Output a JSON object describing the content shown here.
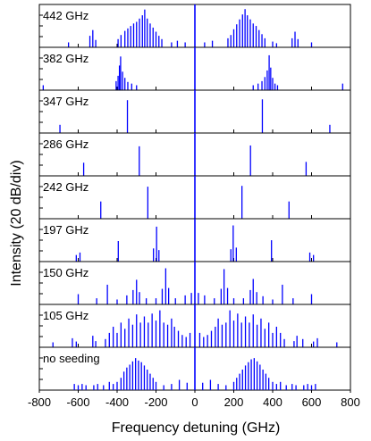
{
  "chart_data": {
    "type": "stacked-spectra",
    "xlabel": "Frequency detuning (GHz)",
    "ylabel": "Intensity (20 dB/div)",
    "xlim": [
      -800,
      800
    ],
    "x_ticks": [
      -800,
      -600,
      -400,
      -200,
      0,
      200,
      400,
      600,
      800
    ],
    "x_tick_labels": [
      "-800",
      "-600",
      "-400",
      "-200",
      "0",
      "200",
      "400",
      "600",
      "800"
    ],
    "line_color": "#0000ff",
    "grid": false,
    "panels": [
      {
        "label": "442 GHz",
        "spacing_ghz": 442,
        "lines": [
          {
            "x": 0,
            "h": 1.0
          },
          {
            "x": -650,
            "h": 0.12
          },
          {
            "x": -540,
            "h": 0.28
          },
          {
            "x": -525,
            "h": 0.42
          },
          {
            "x": -510,
            "h": 0.18
          },
          {
            "x": -395,
            "h": 0.2
          },
          {
            "x": -380,
            "h": 0.3
          },
          {
            "x": -360,
            "h": 0.4
          },
          {
            "x": -345,
            "h": 0.46
          },
          {
            "x": -330,
            "h": 0.52
          },
          {
            "x": -315,
            "h": 0.58
          },
          {
            "x": -300,
            "h": 0.62
          },
          {
            "x": -285,
            "h": 0.7
          },
          {
            "x": -270,
            "h": 0.78
          },
          {
            "x": -258,
            "h": 0.92
          },
          {
            "x": -245,
            "h": 0.7
          },
          {
            "x": -230,
            "h": 0.58
          },
          {
            "x": -215,
            "h": 0.48
          },
          {
            "x": -200,
            "h": 0.38
          },
          {
            "x": -185,
            "h": 0.28
          },
          {
            "x": -170,
            "h": 0.2
          },
          {
            "x": -120,
            "h": 0.12
          },
          {
            "x": -90,
            "h": 0.16
          },
          {
            "x": -50,
            "h": 0.12
          },
          {
            "x": 50,
            "h": 0.12
          },
          {
            "x": 90,
            "h": 0.16
          },
          {
            "x": 170,
            "h": 0.22
          },
          {
            "x": 185,
            "h": 0.3
          },
          {
            "x": 200,
            "h": 0.44
          },
          {
            "x": 215,
            "h": 0.56
          },
          {
            "x": 230,
            "h": 0.68
          },
          {
            "x": 245,
            "h": 0.8
          },
          {
            "x": 258,
            "h": 0.93
          },
          {
            "x": 270,
            "h": 0.78
          },
          {
            "x": 285,
            "h": 0.68
          },
          {
            "x": 300,
            "h": 0.58
          },
          {
            "x": 315,
            "h": 0.52
          },
          {
            "x": 330,
            "h": 0.42
          },
          {
            "x": 345,
            "h": 0.32
          },
          {
            "x": 360,
            "h": 0.22
          },
          {
            "x": 400,
            "h": 0.14
          },
          {
            "x": 420,
            "h": 0.1
          },
          {
            "x": 500,
            "h": 0.22
          },
          {
            "x": 515,
            "h": 0.38
          },
          {
            "x": 530,
            "h": 0.2
          },
          {
            "x": 600,
            "h": 0.12
          }
        ]
      },
      {
        "label": "382 GHz",
        "spacing_ghz": 382,
        "lines": [
          {
            "x": 0,
            "h": 1.0
          },
          {
            "x": -780,
            "h": 0.12
          },
          {
            "x": -405,
            "h": 0.22
          },
          {
            "x": -395,
            "h": 0.35
          },
          {
            "x": -388,
            "h": 0.6
          },
          {
            "x": -382,
            "h": 0.82
          },
          {
            "x": -372,
            "h": 0.45
          },
          {
            "x": -360,
            "h": 0.3
          },
          {
            "x": -345,
            "h": 0.2
          },
          {
            "x": -325,
            "h": 0.16
          },
          {
            "x": -300,
            "h": 0.12
          },
          {
            "x": 300,
            "h": 0.12
          },
          {
            "x": 325,
            "h": 0.16
          },
          {
            "x": 345,
            "h": 0.22
          },
          {
            "x": 360,
            "h": 0.32
          },
          {
            "x": 372,
            "h": 0.48
          },
          {
            "x": 382,
            "h": 0.85
          },
          {
            "x": 390,
            "h": 0.55
          },
          {
            "x": 400,
            "h": 0.3
          },
          {
            "x": 412,
            "h": 0.16
          },
          {
            "x": 425,
            "h": 0.12
          },
          {
            "x": 760,
            "h": 0.16
          }
        ]
      },
      {
        "label": "347 GHz",
        "spacing_ghz": 347,
        "lines": [
          {
            "x": 0,
            "h": 1.0
          },
          {
            "x": -694,
            "h": 0.2
          },
          {
            "x": -347,
            "h": 0.8
          },
          {
            "x": 347,
            "h": 0.82
          },
          {
            "x": 694,
            "h": 0.2
          }
        ]
      },
      {
        "label": "286 GHz",
        "spacing_ghz": 286,
        "lines": [
          {
            "x": 0,
            "h": 1.0
          },
          {
            "x": -572,
            "h": 0.32
          },
          {
            "x": -286,
            "h": 0.72
          },
          {
            "x": 286,
            "h": 0.74
          },
          {
            "x": 572,
            "h": 0.34
          }
        ]
      },
      {
        "label": "242 GHz",
        "spacing_ghz": 242,
        "lines": [
          {
            "x": 0,
            "h": 1.0
          },
          {
            "x": -484,
            "h": 0.42
          },
          {
            "x": -242,
            "h": 0.78
          },
          {
            "x": 242,
            "h": 0.8
          },
          {
            "x": 484,
            "h": 0.42
          }
        ]
      },
      {
        "label": "197 GHz",
        "spacing_ghz": 197,
        "lines": [
          {
            "x": 0,
            "h": 1.0
          },
          {
            "x": -610,
            "h": 0.16
          },
          {
            "x": -591,
            "h": 0.22
          },
          {
            "x": -394,
            "h": 0.5
          },
          {
            "x": -213,
            "h": 0.32
          },
          {
            "x": -197,
            "h": 0.85
          },
          {
            "x": -185,
            "h": 0.28
          },
          {
            "x": 185,
            "h": 0.3
          },
          {
            "x": 197,
            "h": 0.88
          },
          {
            "x": 213,
            "h": 0.34
          },
          {
            "x": 394,
            "h": 0.52
          },
          {
            "x": 591,
            "h": 0.22
          },
          {
            "x": 610,
            "h": 0.16
          }
        ]
      },
      {
        "label": "150 GHz",
        "spacing_ghz": 150,
        "lines": [
          {
            "x": 0,
            "h": 1.0
          },
          {
            "x": -600,
            "h": 0.25
          },
          {
            "x": -505,
            "h": 0.15
          },
          {
            "x": -450,
            "h": 0.48
          },
          {
            "x": -400,
            "h": 0.12
          },
          {
            "x": -350,
            "h": 0.22
          },
          {
            "x": -318,
            "h": 0.35
          },
          {
            "x": -300,
            "h": 0.6
          },
          {
            "x": -285,
            "h": 0.3
          },
          {
            "x": -250,
            "h": 0.15
          },
          {
            "x": -200,
            "h": 0.15
          },
          {
            "x": -168,
            "h": 0.38
          },
          {
            "x": -150,
            "h": 0.88
          },
          {
            "x": -135,
            "h": 0.4
          },
          {
            "x": -100,
            "h": 0.15
          },
          {
            "x": -50,
            "h": 0.22
          },
          {
            "x": -18,
            "h": 0.28
          },
          {
            "x": 18,
            "h": 0.28
          },
          {
            "x": 50,
            "h": 0.22
          },
          {
            "x": 100,
            "h": 0.15
          },
          {
            "x": 135,
            "h": 0.38
          },
          {
            "x": 150,
            "h": 0.86
          },
          {
            "x": 168,
            "h": 0.4
          },
          {
            "x": 200,
            "h": 0.15
          },
          {
            "x": 250,
            "h": 0.15
          },
          {
            "x": 285,
            "h": 0.35
          },
          {
            "x": 300,
            "h": 0.62
          },
          {
            "x": 318,
            "h": 0.3
          },
          {
            "x": 350,
            "h": 0.2
          },
          {
            "x": 400,
            "h": 0.12
          },
          {
            "x": 450,
            "h": 0.48
          },
          {
            "x": 505,
            "h": 0.15
          },
          {
            "x": 600,
            "h": 0.25
          }
        ]
      },
      {
        "label": "105 GHz",
        "spacing_ghz": 105,
        "lines": [
          {
            "x": 0,
            "h": 1.0
          },
          {
            "x": -730,
            "h": 0.12
          },
          {
            "x": -630,
            "h": 0.22
          },
          {
            "x": -610,
            "h": 0.14
          },
          {
            "x": -525,
            "h": 0.28
          },
          {
            "x": -510,
            "h": 0.15
          },
          {
            "x": -460,
            "h": 0.2
          },
          {
            "x": -440,
            "h": 0.35
          },
          {
            "x": -420,
            "h": 0.5
          },
          {
            "x": -400,
            "h": 0.35
          },
          {
            "x": -380,
            "h": 0.6
          },
          {
            "x": -360,
            "h": 0.45
          },
          {
            "x": -340,
            "h": 0.7
          },
          {
            "x": -320,
            "h": 0.55
          },
          {
            "x": -300,
            "h": 0.8
          },
          {
            "x": -280,
            "h": 0.6
          },
          {
            "x": -260,
            "h": 0.75
          },
          {
            "x": -240,
            "h": 0.6
          },
          {
            "x": -220,
            "h": 0.82
          },
          {
            "x": -200,
            "h": 0.65
          },
          {
            "x": -180,
            "h": 0.9
          },
          {
            "x": -160,
            "h": 0.6
          },
          {
            "x": -140,
            "h": 0.55
          },
          {
            "x": -120,
            "h": 0.7
          },
          {
            "x": -105,
            "h": 0.5
          },
          {
            "x": -85,
            "h": 0.4
          },
          {
            "x": -65,
            "h": 0.3
          },
          {
            "x": -45,
            "h": 0.25
          },
          {
            "x": -25,
            "h": 0.35
          },
          {
            "x": 25,
            "h": 0.35
          },
          {
            "x": 45,
            "h": 0.25
          },
          {
            "x": 65,
            "h": 0.3
          },
          {
            "x": 85,
            "h": 0.4
          },
          {
            "x": 105,
            "h": 0.5
          },
          {
            "x": 120,
            "h": 0.7
          },
          {
            "x": 140,
            "h": 0.55
          },
          {
            "x": 160,
            "h": 0.6
          },
          {
            "x": 180,
            "h": 0.9
          },
          {
            "x": 200,
            "h": 0.65
          },
          {
            "x": 220,
            "h": 0.82
          },
          {
            "x": 240,
            "h": 0.6
          },
          {
            "x": 260,
            "h": 0.75
          },
          {
            "x": 280,
            "h": 0.6
          },
          {
            "x": 300,
            "h": 0.8
          },
          {
            "x": 320,
            "h": 0.55
          },
          {
            "x": 340,
            "h": 0.7
          },
          {
            "x": 360,
            "h": 0.45
          },
          {
            "x": 380,
            "h": 0.6
          },
          {
            "x": 400,
            "h": 0.35
          },
          {
            "x": 420,
            "h": 0.5
          },
          {
            "x": 440,
            "h": 0.35
          },
          {
            "x": 460,
            "h": 0.2
          },
          {
            "x": 510,
            "h": 0.15
          },
          {
            "x": 525,
            "h": 0.28
          },
          {
            "x": 555,
            "h": 0.2
          },
          {
            "x": 610,
            "h": 0.14
          },
          {
            "x": 630,
            "h": 0.22
          },
          {
            "x": 730,
            "h": 0.12
          }
        ]
      },
      {
        "label": "no seeding",
        "spacing_ghz": null,
        "lines": [
          {
            "x": 0,
            "h": 1.0
          },
          {
            "x": -620,
            "h": 0.15
          },
          {
            "x": -600,
            "h": 0.12
          },
          {
            "x": -580,
            "h": 0.15
          },
          {
            "x": -560,
            "h": 0.12
          },
          {
            "x": -520,
            "h": 0.12
          },
          {
            "x": -500,
            "h": 0.15
          },
          {
            "x": -470,
            "h": 0.12
          },
          {
            "x": -440,
            "h": 0.2
          },
          {
            "x": -420,
            "h": 0.15
          },
          {
            "x": -400,
            "h": 0.2
          },
          {
            "x": -380,
            "h": 0.3
          },
          {
            "x": -365,
            "h": 0.45
          },
          {
            "x": -350,
            "h": 0.55
          },
          {
            "x": -335,
            "h": 0.62
          },
          {
            "x": -320,
            "h": 0.7
          },
          {
            "x": -305,
            "h": 0.78
          },
          {
            "x": -290,
            "h": 0.72
          },
          {
            "x": -275,
            "h": 0.68
          },
          {
            "x": -260,
            "h": 0.6
          },
          {
            "x": -245,
            "h": 0.5
          },
          {
            "x": -230,
            "h": 0.4
          },
          {
            "x": -215,
            "h": 0.3
          },
          {
            "x": -200,
            "h": 0.2
          },
          {
            "x": -160,
            "h": 0.12
          },
          {
            "x": -120,
            "h": 0.15
          },
          {
            "x": -80,
            "h": 0.25
          },
          {
            "x": -40,
            "h": 0.18
          },
          {
            "x": 40,
            "h": 0.18
          },
          {
            "x": 80,
            "h": 0.25
          },
          {
            "x": 120,
            "h": 0.15
          },
          {
            "x": 160,
            "h": 0.12
          },
          {
            "x": 200,
            "h": 0.2
          },
          {
            "x": 215,
            "h": 0.3
          },
          {
            "x": 230,
            "h": 0.4
          },
          {
            "x": 245,
            "h": 0.5
          },
          {
            "x": 260,
            "h": 0.6
          },
          {
            "x": 275,
            "h": 0.68
          },
          {
            "x": 290,
            "h": 0.75
          },
          {
            "x": 305,
            "h": 0.78
          },
          {
            "x": 320,
            "h": 0.7
          },
          {
            "x": 335,
            "h": 0.62
          },
          {
            "x": 350,
            "h": 0.5
          },
          {
            "x": 365,
            "h": 0.4
          },
          {
            "x": 380,
            "h": 0.3
          },
          {
            "x": 400,
            "h": 0.2
          },
          {
            "x": 420,
            "h": 0.15
          },
          {
            "x": 440,
            "h": 0.2
          },
          {
            "x": 470,
            "h": 0.12
          },
          {
            "x": 500,
            "h": 0.15
          },
          {
            "x": 520,
            "h": 0.12
          },
          {
            "x": 560,
            "h": 0.12
          },
          {
            "x": 580,
            "h": 0.15
          },
          {
            "x": 600,
            "h": 0.12
          },
          {
            "x": 620,
            "h": 0.15
          }
        ]
      }
    ]
  }
}
